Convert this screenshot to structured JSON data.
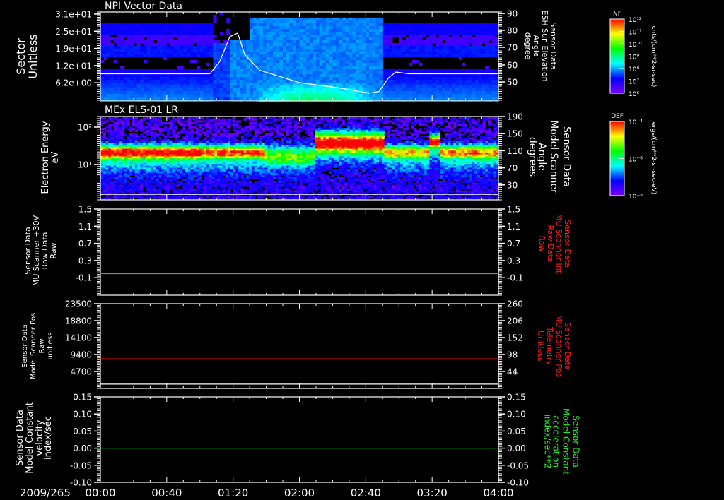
{
  "header": {
    "date": "2009/265"
  },
  "time_axis": {
    "labels": [
      "00:00",
      "00:40",
      "01:20",
      "02:00",
      "02:40",
      "03:20",
      "04:00"
    ],
    "range_hours": [
      0,
      4
    ]
  },
  "chart_data": [
    {
      "type": "heatmap",
      "title": "NPI Vector Data",
      "ylabel": [
        "Sector",
        "Unitless"
      ],
      "yticks": [
        "3.1e+01",
        "2.5e+01",
        "1.9e+01",
        "1.2e+01",
        "6.2e+00"
      ],
      "ylim": [
        0,
        31.5
      ],
      "right_ylabel": [
        "Sensor Data",
        "ESH Sun Elevation",
        "Angle",
        "degree"
      ],
      "right_yticks": [
        "90",
        "80",
        "70",
        "60",
        "50"
      ],
      "right_ylim": [
        40,
        90
      ],
      "overlay_line": {
        "name": "ESH Sun Elevation Angle",
        "color": "#ffffff",
        "x_hours": [
          0,
          1.1,
          1.2,
          1.3,
          1.38,
          1.45,
          1.6,
          2.0,
          2.4,
          2.7,
          2.8,
          2.9,
          2.97,
          3.1,
          4.0
        ],
        "y": [
          55,
          55,
          62,
          76,
          78,
          66,
          57,
          50,
          47,
          44,
          45,
          53,
          56,
          55,
          55
        ]
      },
      "colorbar": {
        "title": "NF",
        "ticks": [
          "10¹²",
          "10¹¹",
          "10¹⁰",
          "10⁹",
          "10⁸",
          "10⁷",
          "10⁶"
        ],
        "units": "cnts/(cm**2-sr-sec)"
      }
    },
    {
      "type": "heatmap",
      "title": "MEx ELS-01 LR",
      "ylabel": [
        "Electron Energy",
        "eV"
      ],
      "yticks": [
        "10²",
        "10¹"
      ],
      "ylim": [
        1.1,
        190
      ],
      "yscale": "log",
      "right_ylabel": [
        "Sensor Data",
        "Model Scanner",
        "Angle",
        "degrees"
      ],
      "right_yticks": [
        "190",
        "150",
        "110",
        "70",
        "30"
      ],
      "right_ylim": [
        -6,
        190
      ],
      "overlay_line": {
        "name": "Model Scanner Angle",
        "color": "#ffffff",
        "value": 7
      },
      "peak_energy_eV": {
        "00:00-01:40": 20,
        "01:40-02:10": 16,
        "02:10-02:50": 35,
        "02:50-04:00": 20
      },
      "colorbar": {
        "title": "DEF",
        "ticks": [
          "10⁻⁴",
          "10⁻⁶",
          "10⁻⁸"
        ],
        "units": "ergs/(cm**2-sr-sec-eV)"
      }
    },
    {
      "type": "line",
      "ylabel": [
        "Sensor Data",
        "MU Scanner +30V",
        "Raw Data",
        "Raw"
      ],
      "yticks": [
        "1.5",
        "1.1",
        "0.7",
        "0.3",
        "-0.1"
      ],
      "ylim": [
        -0.5,
        1.5
      ],
      "right_ylabel": [
        "Sensor Data",
        "MU Scanner Int",
        "Raw Data",
        "Raw"
      ],
      "right_yticks": [
        "1.5",
        "1.1",
        "0.7",
        "0.3",
        "-0.1"
      ],
      "right_ylim": [
        -0.5,
        1.5
      ],
      "right_color": "#ff2020",
      "series": [
        {
          "name": "MU Scanner Int",
          "color": "#808080",
          "values": [
            0,
            0
          ]
        }
      ]
    },
    {
      "type": "line",
      "ylabel": [
        "Sensor Data",
        "Model Scanner Pos",
        "Raw",
        "unitless"
      ],
      "yticks": [
        "23500",
        "18800",
        "14100",
        "9400",
        "4700"
      ],
      "ylim": [
        0,
        23500
      ],
      "right_ylabel": [
        "Sensor Data",
        "MU Scanner Pos",
        "Telemetry",
        "Unitless"
      ],
      "right_yticks": [
        "260",
        "206",
        "152",
        "98",
        "44"
      ],
      "right_ylim": [
        -10,
        260
      ],
      "right_color": "#ff2020",
      "series": [
        {
          "name": "MU Scanner Pos Telemetry",
          "color": "#ff0000",
          "values": [
            8200,
            8200
          ]
        },
        {
          "name": "Model Scanner Pos",
          "color": "#ffffff",
          "values": [
            1200,
            1200
          ]
        }
      ]
    },
    {
      "type": "line",
      "ylabel": [
        "Sensor Data",
        "Model Constant",
        "velocity",
        "index/sec"
      ],
      "yticks": [
        "0.15",
        "0.10",
        "0.05",
        "0.00",
        "-0.05",
        "-0.10"
      ],
      "ylim": [
        -0.1,
        0.15
      ],
      "right_ylabel": [
        "Sensor Data",
        "Model Constant",
        "acceleration",
        "index/sec**2"
      ],
      "right_yticks": [
        "0.15",
        "0.10",
        "0.05",
        "0.00",
        "-0.05",
        "-0.10"
      ],
      "right_ylim": [
        -0.1,
        0.15
      ],
      "right_color": "#20ff20",
      "series": [
        {
          "name": "Model Constant acceleration",
          "color": "#00e000",
          "values": [
            0,
            0
          ]
        }
      ]
    }
  ]
}
